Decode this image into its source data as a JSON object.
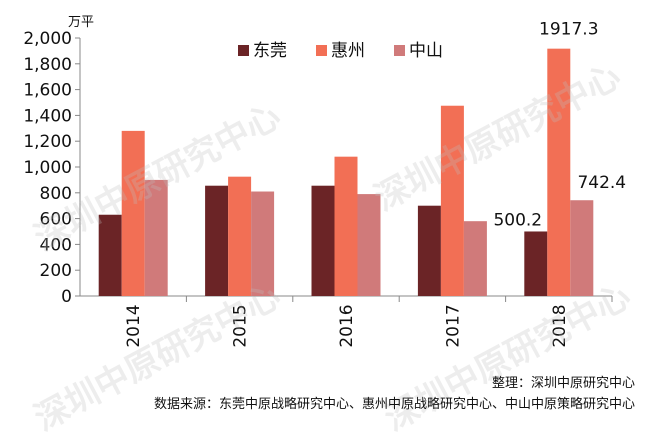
{
  "chart_data": {
    "type": "bar",
    "unit_label": "万平",
    "categories": [
      "2014",
      "2015",
      "2016",
      "2017",
      "2018"
    ],
    "series": [
      {
        "name": "东莞",
        "color": "#6b2426",
        "values": [
          630,
          855,
          855,
          700,
          500.2
        ]
      },
      {
        "name": "惠州",
        "color": "#f26f55",
        "values": [
          1280,
          925,
          1080,
          1475,
          1917.3
        ]
      },
      {
        "name": "中山",
        "color": "#d07a7a",
        "values": [
          900,
          810,
          790,
          580,
          742.4
        ]
      }
    ],
    "ylim": [
      0,
      2000
    ],
    "yticks": [
      "0",
      "200",
      "400",
      "600",
      "800",
      "1,000",
      "1,200",
      "1,400",
      "1,600",
      "1,800",
      "2,000"
    ],
    "data_labels": [
      {
        "text": "1917.3",
        "series": 1,
        "index": 4
      },
      {
        "text": "500.2",
        "series": 0,
        "index": 4
      },
      {
        "text": "742.4",
        "series": 2,
        "index": 4
      }
    ],
    "legend_position": "top-center",
    "grid": false
  },
  "watermark": "深圳中原研究中心",
  "footer": {
    "compiled_by": "整理：深圳中原研究中心",
    "source": "数据来源：东莞中原战略研究中心、惠州中原战略研究中心、中山中原策略研究中心"
  }
}
